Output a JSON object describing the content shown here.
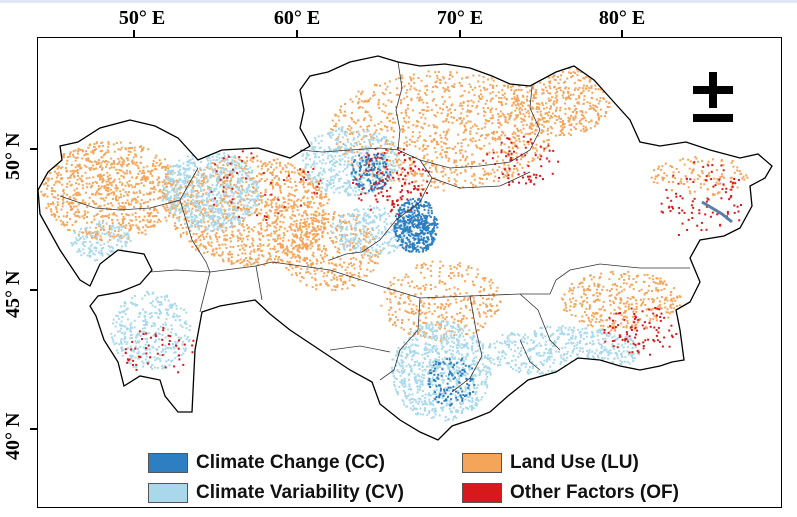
{
  "map": {
    "longitude_labels": [
      "50° E",
      "60° E",
      "70° E",
      "80° E"
    ],
    "latitude_labels": [
      "50° N",
      "45° N",
      "40° N"
    ],
    "north_arrow": "north-arrow-icon"
  },
  "legend": {
    "items": [
      {
        "label": "Climate Change (CC)",
        "color": "#2e7fc1"
      },
      {
        "label": "Land Use (LU)",
        "color": "#f5a55a"
      },
      {
        "label": "Climate Variability (CV)",
        "color": "#a8d8ea"
      },
      {
        "label": "Other Factors (OF)",
        "color": "#d7191c"
      }
    ]
  }
}
